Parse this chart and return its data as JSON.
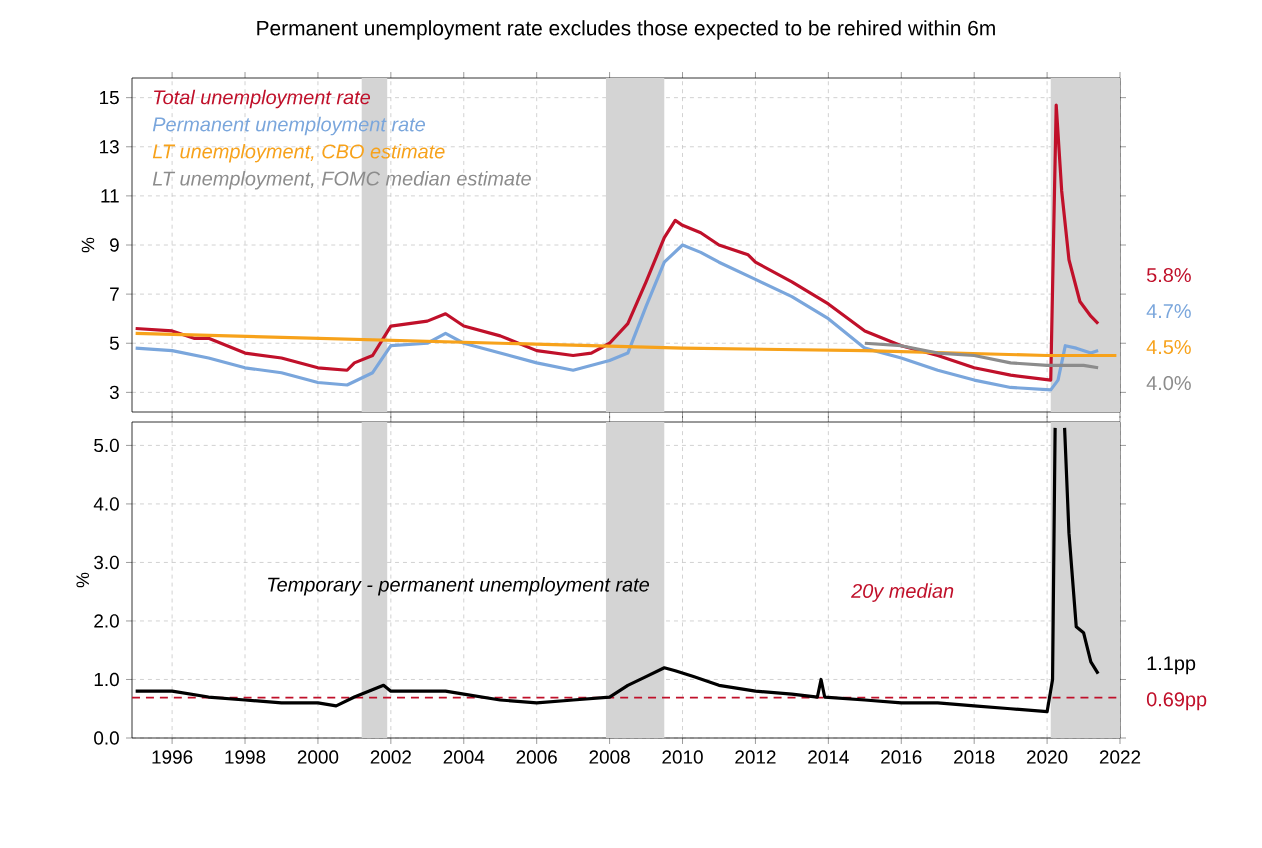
{
  "chart_data": [
    {
      "type": "line",
      "title": "Permanent unemployment rate excludes those expected to be rehired within 6m",
      "ylabel": "%",
      "xlim": [
        1994.9,
        2022
      ],
      "xticks": [
        1996,
        1998,
        2000,
        2002,
        2004,
        2006,
        2008,
        2010,
        2012,
        2014,
        2016,
        2018,
        2020,
        2022
      ],
      "ylim": [
        2.2,
        15.8
      ],
      "yticks": [
        3,
        5,
        7,
        9,
        11,
        13,
        15
      ],
      "grid": true,
      "legend": "top left",
      "tick_labels": "y",
      "bands": [
        {
          "axis": "x",
          "from": 2001.2,
          "to": 2001.9,
          "color": "#d4d4d4"
        },
        {
          "axis": "x",
          "from": 2007.9,
          "to": 2009.5,
          "color": "#d4d4d4"
        },
        {
          "axis": "x",
          "from": 2020.1,
          "to": 2022,
          "color": "#d4d4d4"
        }
      ],
      "series": [
        {
          "name": "Total unemployment rate",
          "color": "#c0102a",
          "x": [
            1995,
            1996,
            1996.6,
            1997,
            1998,
            1999,
            2000,
            2000.8,
            2001,
            2001.5,
            2002,
            2002.5,
            2003,
            2003.5,
            2004,
            2005,
            2006,
            2007,
            2007.5,
            2008,
            2008.5,
            2009,
            2009.5,
            2009.8,
            2010,
            2010.5,
            2011,
            2011.8,
            2012,
            2013,
            2014,
            2015,
            2016,
            2017,
            2018,
            2019,
            2020.1,
            2020.25,
            2020.4,
            2020.6,
            2020.9,
            2021.2,
            2021.4
          ],
          "values": [
            5.6,
            5.5,
            5.2,
            5.2,
            4.6,
            4.4,
            4.0,
            3.9,
            4.2,
            4.5,
            5.7,
            5.8,
            5.9,
            6.2,
            5.7,
            5.3,
            4.7,
            4.5,
            4.6,
            5.0,
            5.8,
            7.5,
            9.3,
            10.0,
            9.8,
            9.5,
            9.0,
            8.6,
            8.3,
            7.5,
            6.6,
            5.5,
            4.9,
            4.5,
            4.0,
            3.7,
            3.5,
            14.7,
            11.2,
            8.4,
            6.7,
            6.1,
            5.8
          ]
        },
        {
          "name": "Permanent unemployment rate",
          "color": "#7aa6dc",
          "x": [
            1995,
            1996,
            1997,
            1998,
            1999,
            2000,
            2000.8,
            2001.5,
            2002,
            2003,
            2003.5,
            2004,
            2005,
            2006,
            2007,
            2008,
            2008.5,
            2009,
            2009.5,
            2010,
            2010.5,
            2011,
            2012,
            2013,
            2014,
            2015,
            2016,
            2017,
            2018,
            2019,
            2020.1,
            2020.3,
            2020.5,
            2020.8,
            2021.2,
            2021.4
          ],
          "values": [
            4.8,
            4.7,
            4.4,
            4.0,
            3.8,
            3.4,
            3.3,
            3.8,
            4.9,
            5.0,
            5.4,
            5.0,
            4.6,
            4.2,
            3.9,
            4.3,
            4.6,
            6.5,
            8.3,
            9.0,
            8.7,
            8.3,
            7.6,
            6.9,
            6.0,
            4.8,
            4.4,
            3.9,
            3.5,
            3.2,
            3.1,
            3.5,
            4.9,
            4.8,
            4.6,
            4.7
          ]
        },
        {
          "name": "LT unemployment, CBO estimate",
          "color": "#f7a21b",
          "x": [
            1995,
            2000,
            2005,
            2010,
            2015,
            2020,
            2021.9
          ],
          "values": [
            5.4,
            5.2,
            5.0,
            4.8,
            4.7,
            4.5,
            4.5
          ]
        },
        {
          "name": "LT unemployment, FOMC median estimate",
          "color": "#8c8c8c",
          "x": [
            2015,
            2016,
            2017,
            2018,
            2019,
            2020,
            2021,
            2021.4
          ],
          "values": [
            5.0,
            4.9,
            4.6,
            4.5,
            4.2,
            4.1,
            4.1,
            4.0
          ]
        }
      ],
      "annotations": [
        "5.8%",
        "4.7%",
        "4.5%",
        "4.0%"
      ]
    },
    {
      "type": "line",
      "ylabel": "%",
      "xlim": [
        1994.9,
        2022
      ],
      "xticks": [
        1996,
        1998,
        2000,
        2002,
        2004,
        2006,
        2008,
        2010,
        2012,
        2014,
        2016,
        2018,
        2020,
        2022
      ],
      "ylim": [
        0,
        5.4
      ],
      "yticks": [
        {
          "value": 0,
          "label": "0.0"
        },
        {
          "value": 1,
          "label": "1.0"
        },
        {
          "value": 2,
          "label": "2.0"
        },
        {
          "value": 3,
          "label": "3.0"
        },
        {
          "value": 4,
          "label": "4.0"
        },
        {
          "value": 5,
          "label": "5.0"
        }
      ],
      "grid": true,
      "bands": [
        {
          "axis": "x",
          "from": 2001.2,
          "to": 2001.9,
          "color": "#d4d4d4"
        },
        {
          "axis": "x",
          "from": 2007.9,
          "to": 2009.5,
          "color": "#d4d4d4"
        },
        {
          "axis": "x",
          "from": 2020.1,
          "to": 2022,
          "color": "#d4d4d4"
        }
      ],
      "ref_lines": [
        {
          "axis": "y",
          "value": 0.69,
          "label": "20y median",
          "color": "#c0102a",
          "line_style": "dashed"
        }
      ],
      "series": [
        {
          "name": "Temporary - permanent unemployment rate",
          "color": "#000000",
          "x": [
            1995,
            1996,
            1997,
            1998,
            1999,
            2000,
            2000.5,
            2001,
            2001.8,
            2002,
            2003,
            2003.5,
            2004,
            2005,
            2006,
            2007,
            2008,
            2008.5,
            2009,
            2009.5,
            2009.8,
            2010.3,
            2011,
            2012,
            2013,
            2013.7,
            2013.8,
            2013.9,
            2015,
            2016,
            2017,
            2018,
            2019,
            2020.0,
            2020.15,
            2020.22,
            2020.35,
            2020.48,
            2020.6,
            2020.8,
            2021.0,
            2021.2,
            2021.4
          ],
          "values": [
            0.8,
            0.8,
            0.7,
            0.65,
            0.6,
            0.6,
            0.55,
            0.7,
            0.9,
            0.8,
            0.8,
            0.8,
            0.75,
            0.65,
            0.6,
            0.65,
            0.7,
            0.9,
            1.05,
            1.2,
            1.15,
            1.05,
            0.9,
            0.8,
            0.75,
            0.7,
            1.0,
            0.7,
            0.65,
            0.6,
            0.6,
            0.55,
            0.5,
            0.45,
            1.0,
            5.3,
            null,
            5.3,
            3.5,
            1.9,
            1.8,
            1.3,
            1.1
          ]
        }
      ],
      "annotations": [
        "1.1pp",
        "0.69pp"
      ]
    }
  ]
}
